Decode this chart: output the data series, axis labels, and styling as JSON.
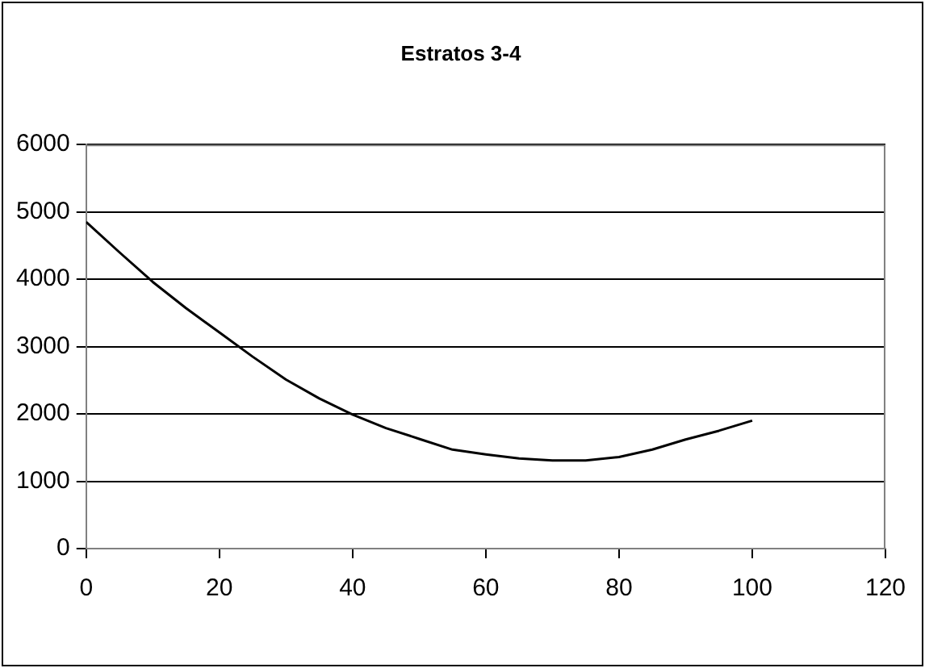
{
  "chart_data": {
    "type": "line",
    "title": "Estratos 3-4",
    "x": [
      0,
      5,
      10,
      15,
      20,
      25,
      30,
      35,
      40,
      45,
      50,
      55,
      60,
      65,
      70,
      75,
      80,
      85,
      90,
      95,
      100
    ],
    "series": [
      {
        "color": "#000000",
        "values": [
          4850,
          4400,
          3960,
          3570,
          3210,
          2850,
          2510,
          2230,
          1990,
          1790,
          1630,
          1470,
          1400,
          1340,
          1310,
          1310,
          1360,
          1470,
          1620,
          1750,
          1900
        ]
      }
    ],
    "xlim": [
      0,
      120
    ],
    "xticks": [
      0,
      20,
      40,
      60,
      80,
      100,
      120
    ],
    "ylim": [
      0,
      6000
    ],
    "yticks": [
      0,
      1000,
      2000,
      3000,
      4000,
      5000,
      6000
    ],
    "grid": "y",
    "legend": false,
    "marker": "none",
    "line_style": "solid"
  }
}
